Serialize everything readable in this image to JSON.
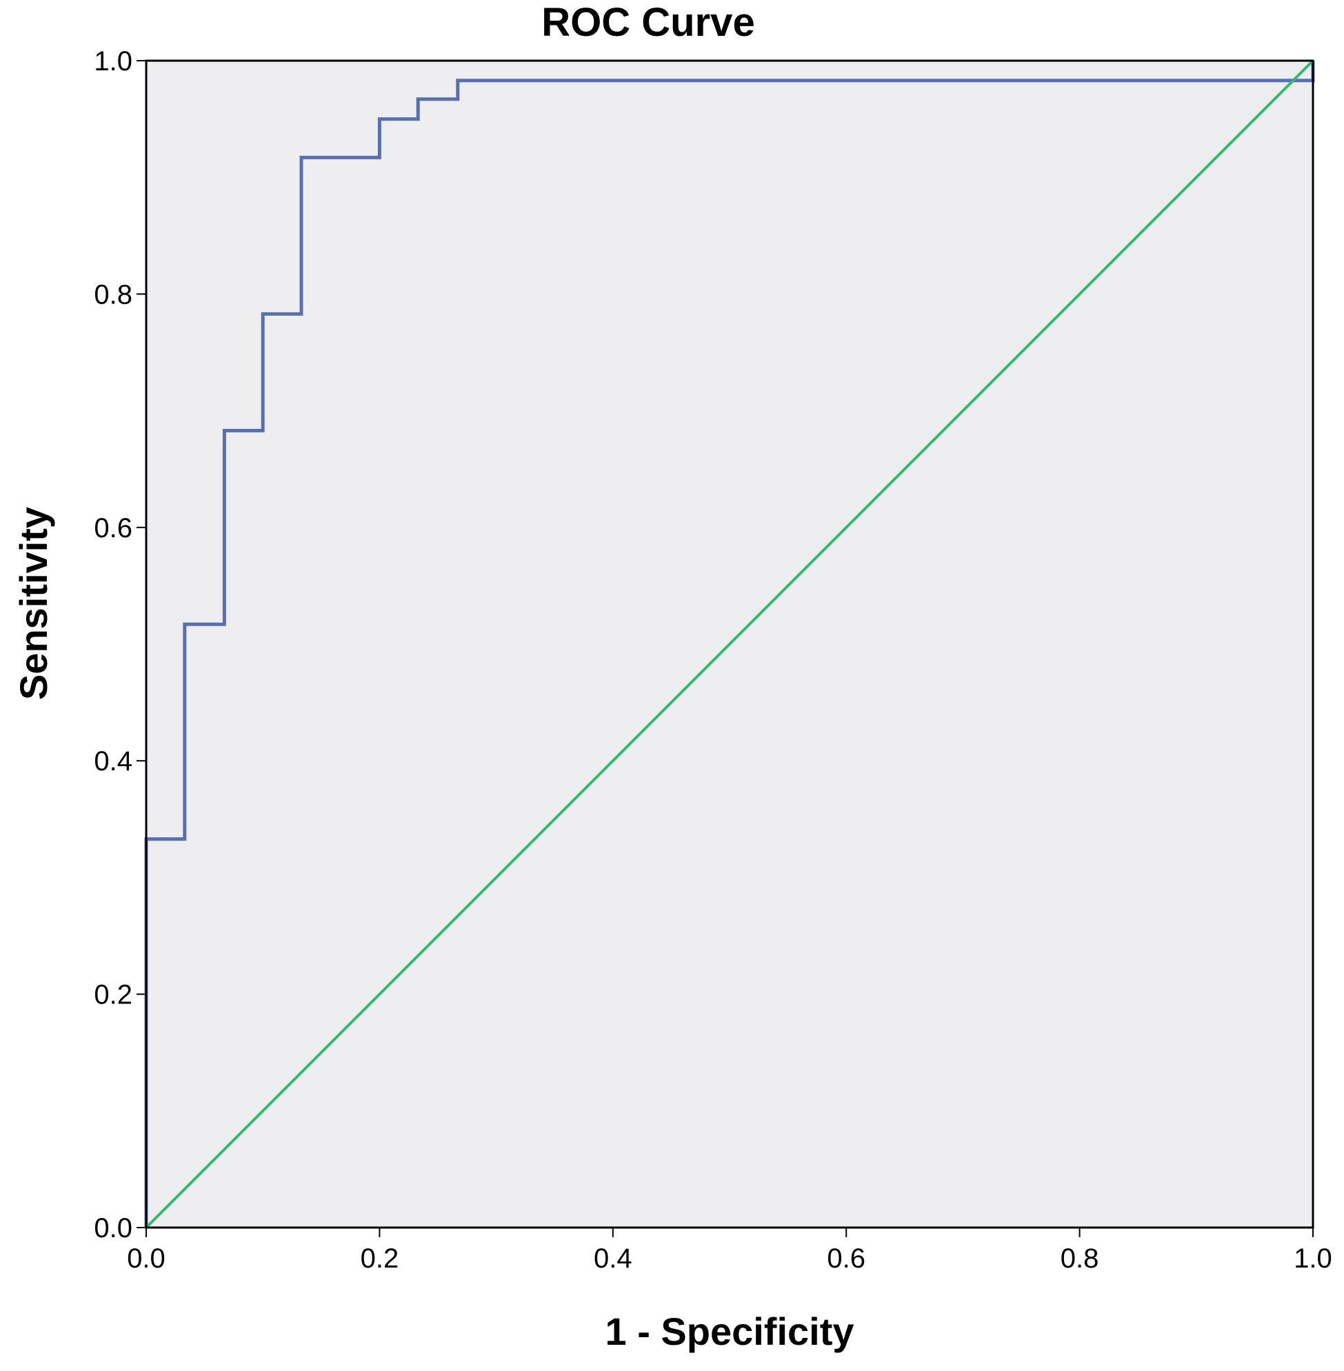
{
  "chart_data": {
    "type": "line",
    "title": "ROC Curve",
    "xlabel": "1 - Specificity",
    "ylabel": "Sensitivity",
    "xlim": [
      0,
      1
    ],
    "ylim": [
      0,
      1
    ],
    "x_ticks": [
      "0.0",
      "0.2",
      "0.4",
      "0.6",
      "0.8",
      "1.0"
    ],
    "y_ticks": [
      "0.0",
      "0.2",
      "0.4",
      "0.6",
      "0.8",
      "1.0"
    ],
    "grid": false,
    "plot_background": "#eeedf0",
    "series": [
      {
        "color": "#5a6fae",
        "step": true,
        "points": [
          [
            0.0,
            0.0
          ],
          [
            0.0,
            0.333
          ],
          [
            0.033,
            0.333
          ],
          [
            0.033,
            0.517
          ],
          [
            0.067,
            0.517
          ],
          [
            0.067,
            0.683
          ],
          [
            0.1,
            0.683
          ],
          [
            0.1,
            0.783
          ],
          [
            0.133,
            0.783
          ],
          [
            0.133,
            0.917
          ],
          [
            0.2,
            0.917
          ],
          [
            0.2,
            0.95
          ],
          [
            0.233,
            0.95
          ],
          [
            0.233,
            0.967
          ],
          [
            0.267,
            0.967
          ],
          [
            0.267,
            0.983
          ],
          [
            1.0,
            0.983
          ],
          [
            1.0,
            1.0
          ]
        ]
      },
      {
        "color": "#2ebc6e",
        "step": false,
        "points": [
          [
            0,
            0
          ],
          [
            1,
            1
          ]
        ]
      }
    ]
  }
}
